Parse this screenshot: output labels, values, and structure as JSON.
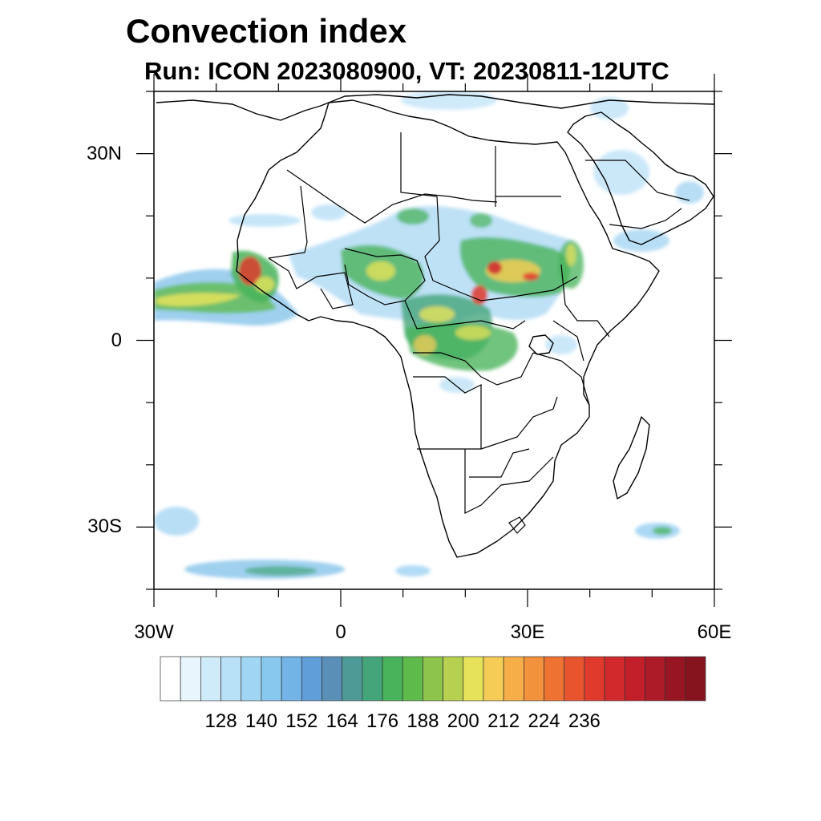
{
  "title": "Convection index",
  "subtitle": "Run: ICON 2023080900,  VT: 20230811-12UTC",
  "map": {
    "region": "Africa",
    "lon_range": [
      -30,
      60
    ],
    "lat_range": [
      -40,
      40
    ],
    "y_ticks": [
      {
        "label": "30N",
        "lat": 30
      },
      {
        "label": "0",
        "lat": 0
      },
      {
        "label": "30S",
        "lat": -30
      }
    ],
    "x_ticks": [
      {
        "label": "30W",
        "lon": -30
      },
      {
        "label": "0",
        "lon": 0
      },
      {
        "label": "30E",
        "lon": 30
      },
      {
        "label": "60E",
        "lon": 60
      }
    ],
    "land_color": "#ffffff",
    "border_color": "#000000"
  },
  "colorbar": {
    "labels": [
      "128",
      "140",
      "152",
      "164",
      "176",
      "188",
      "200",
      "212",
      "224",
      "236"
    ],
    "colors": [
      "#ffffff",
      "#e8f5fc",
      "#cfeaf8",
      "#b8e0f6",
      "#a0d6f4",
      "#88c8ef",
      "#72b4e6",
      "#5f9ed8",
      "#5a8fb8",
      "#4e9a97",
      "#45a57a",
      "#48b35a",
      "#5fba4c",
      "#8dc44c",
      "#b8d050",
      "#e6e35a",
      "#f5cc55",
      "#f6ae48",
      "#f3923c",
      "#ee7232",
      "#e7542e",
      "#df3a2c",
      "#d22a2c",
      "#c21f2b",
      "#ad1a28",
      "#981623",
      "#85141f"
    ]
  }
}
